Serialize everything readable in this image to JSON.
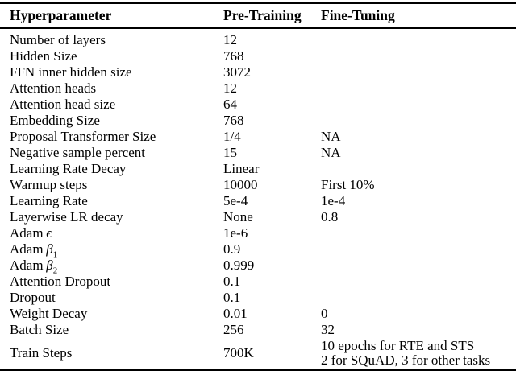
{
  "colors": {
    "text": "#000000",
    "background": "#ffffff",
    "rule": "#000000"
  },
  "table": {
    "header": {
      "param": "Hyperparameter",
      "pre": "Pre-Training",
      "fine": "Fine-Tuning"
    },
    "rows": [
      {
        "param": "Number of layers",
        "pre": "12",
        "fine": ""
      },
      {
        "param": "Hidden Size",
        "pre": "768",
        "fine": ""
      },
      {
        "param": "FFN inner hidden size",
        "pre": "3072",
        "fine": ""
      },
      {
        "param": "Attention heads",
        "pre": "12",
        "fine": ""
      },
      {
        "param": "Attention head size",
        "pre": "64",
        "fine": ""
      },
      {
        "param": "Embedding Size",
        "pre": "768",
        "fine": ""
      },
      {
        "param": "Proposal Transformer Size",
        "pre": "1/4",
        "fine": "NA"
      },
      {
        "param": "Negative sample percent",
        "pre": "15",
        "fine": "NA"
      },
      {
        "param": "Learning Rate Decay",
        "pre": "Linear",
        "fine": ""
      },
      {
        "param": "Warmup steps",
        "pre": "10000",
        "fine": "First 10%"
      },
      {
        "param": "Learning Rate",
        "pre": "5e-4",
        "fine": "1e-4"
      },
      {
        "param": "Layerwise LR decay",
        "pre": "None",
        "fine": "0.8"
      },
      {
        "param": "Adam",
        "greek": "ϵ",
        "pre": "1e-6",
        "fine": ""
      },
      {
        "param": "Adam",
        "greek": "β",
        "sub": "1",
        "pre": "0.9",
        "fine": ""
      },
      {
        "param": "Adam",
        "greek": "β",
        "sub": "2",
        "pre": "0.999",
        "fine": ""
      },
      {
        "param": "Attention Dropout",
        "pre": "0.1",
        "fine": ""
      },
      {
        "param": "Dropout",
        "pre": "0.1",
        "fine": ""
      },
      {
        "param": "Weight Decay",
        "pre": "0.01",
        "fine": "0"
      },
      {
        "param": "Batch Size",
        "pre": "256",
        "fine": "32"
      },
      {
        "param": "Train Steps",
        "pre": "700K",
        "fine_lines": [
          "10 epochs for RTE and STS",
          "2 for SQuAD, 3 for other tasks"
        ]
      }
    ]
  }
}
